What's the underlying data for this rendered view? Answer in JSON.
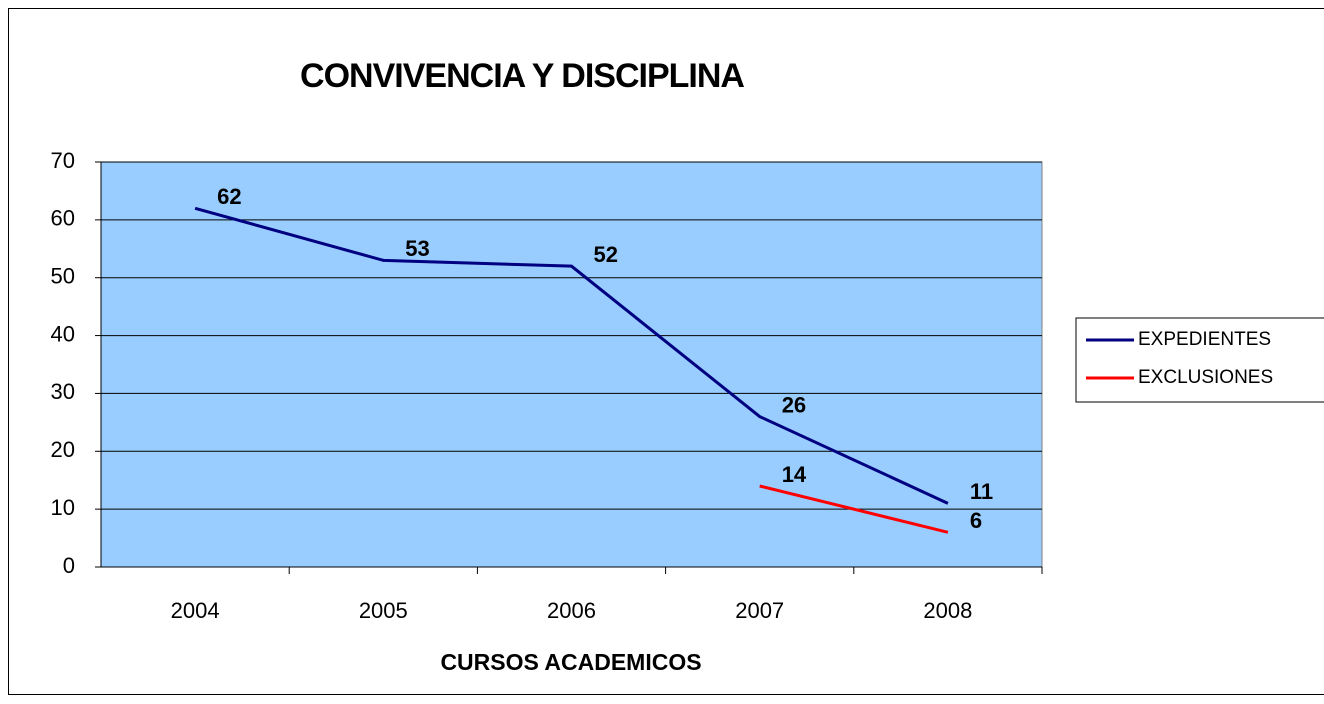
{
  "chart_data": {
    "type": "line",
    "title": "CONVIVENCIA Y DISCIPLINA",
    "x_label": "CURSOS ACADEMICOS",
    "categories": [
      "2004",
      "2005",
      "2006",
      "2007",
      "2008"
    ],
    "series": [
      {
        "name": "EXPEDIENTES",
        "color": "#000080",
        "values": [
          62,
          53,
          52,
          26,
          11
        ]
      },
      {
        "name": "EXCLUSIONES",
        "color": "#ff0000",
        "values": [
          null,
          null,
          null,
          14,
          6
        ]
      }
    ],
    "ylim": [
      0,
      70
    ],
    "yticks": [
      0,
      10,
      20,
      30,
      40,
      50,
      60,
      70
    ],
    "grid": true,
    "legend": "right",
    "plot_background": "#99ccff"
  }
}
